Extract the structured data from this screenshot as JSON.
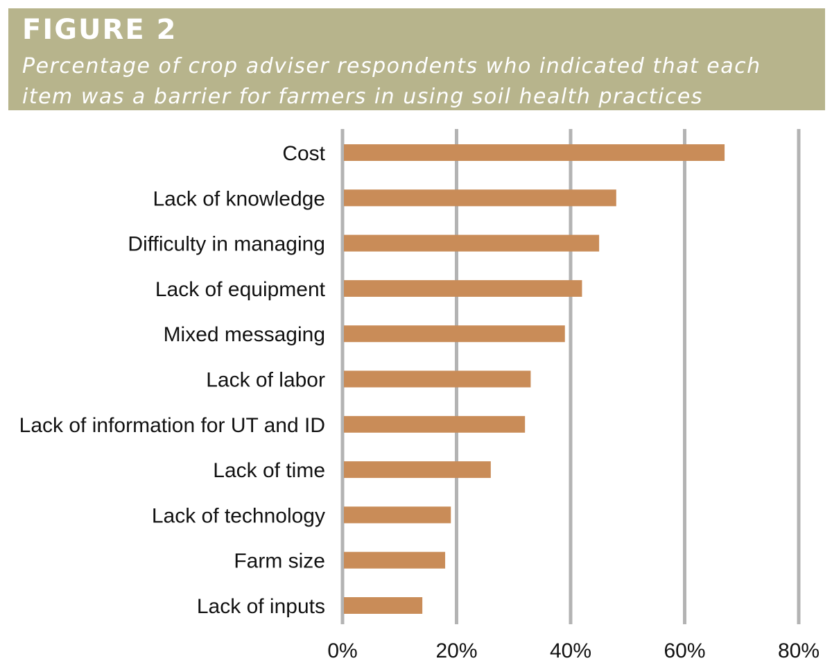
{
  "figure": {
    "title": "FIGURE 2",
    "subtitle": "Percentage of crop adviser respondents who indicated that each item was a barrier for farmers in using soil health practices"
  },
  "colors": {
    "header_bg": "#b7b48c",
    "bar": "#c98c58",
    "gridline": "#b3b3b3"
  },
  "chart_data": {
    "type": "bar",
    "orientation": "horizontal",
    "categories": [
      "Cost",
      "Lack of knowledge",
      "Difficulty in managing",
      "Lack of equipment",
      "Mixed messaging",
      "Lack of labor",
      "Lack of information for UT and ID",
      "Lack of time",
      "Lack of technology",
      "Farm size",
      "Lack of inputs"
    ],
    "values": [
      67,
      48,
      45,
      42,
      39,
      33,
      32,
      26,
      19,
      18,
      14
    ],
    "xlim": [
      0,
      80
    ],
    "xticks": [
      0,
      20,
      40,
      60,
      80
    ],
    "xtick_labels": [
      "0%",
      "20%",
      "40%",
      "60%",
      "80%"
    ],
    "unit": "%",
    "grid": "vertical",
    "legend": "none"
  }
}
